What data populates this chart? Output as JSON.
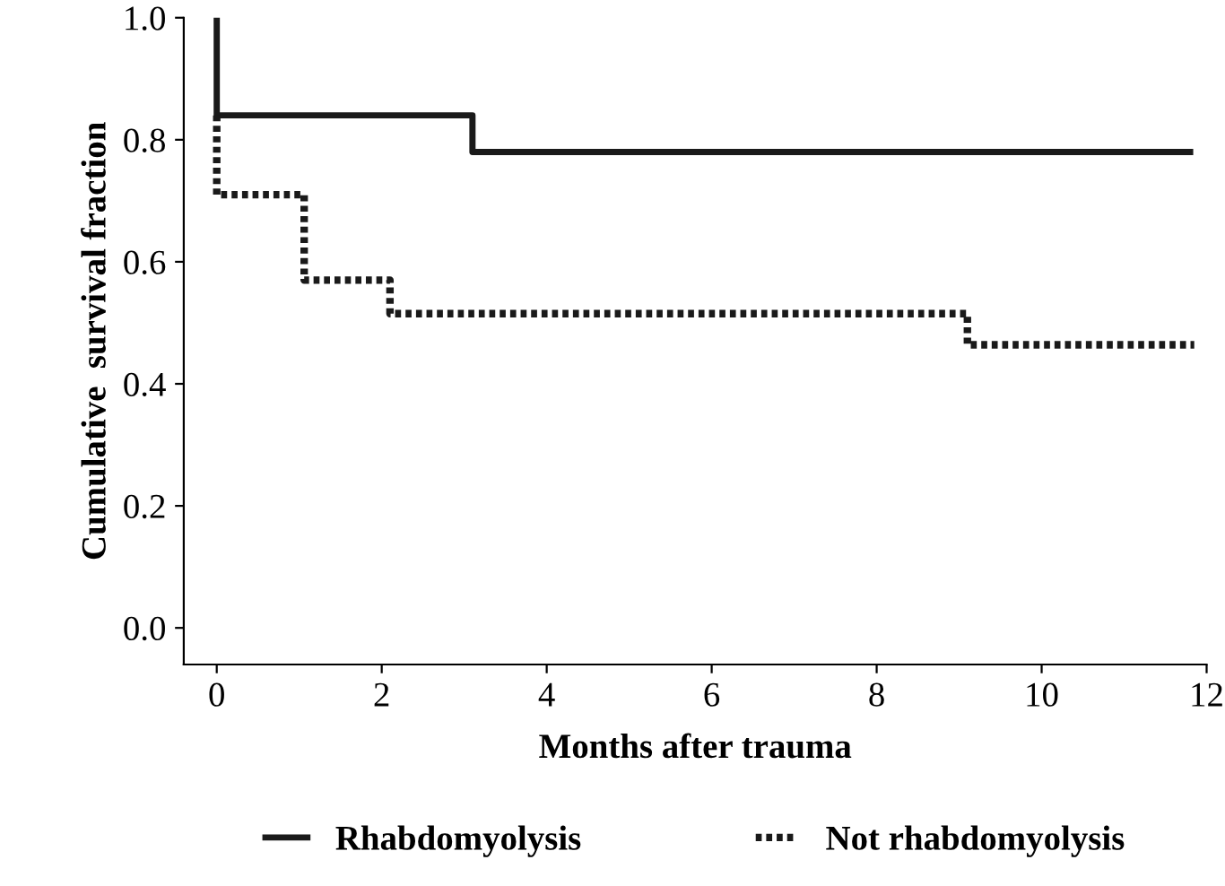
{
  "chart_data": {
    "type": "step",
    "xlabel": "Months after trauma",
    "ylabel": "Cumulative  survival fraction",
    "xlim": [
      -0.4,
      12
    ],
    "xticks": [
      0,
      2,
      4,
      6,
      8,
      10,
      12
    ],
    "ylim": [
      -0.06,
      1.0
    ],
    "yticks": [
      {
        "value": 0,
        "label": "0.0"
      },
      0.2,
      0.4,
      0.6,
      0.8,
      {
        "value": 1,
        "label": "1.0"
      }
    ],
    "grid": false,
    "legend": "bottom",
    "marker": "none",
    "series": [
      {
        "name": "Rhabdomyolysis",
        "color": "#1a1a1a",
        "line_style": "solid",
        "x": [
          0,
          0,
          3.1,
          11.8
        ],
        "values": [
          1.0,
          0.84,
          0.78,
          0.78
        ]
      },
      {
        "name": "Not rhabdomyolysis",
        "color": "#1a1a1a",
        "line_style": "dotted",
        "x": [
          0,
          0,
          1.06,
          2.1,
          9.1,
          11.85
        ],
        "values": [
          0.84,
          0.71,
          0.57,
          0.515,
          0.464,
          0.464
        ]
      }
    ]
  }
}
